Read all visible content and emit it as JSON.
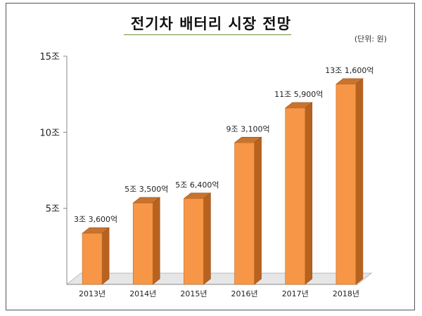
{
  "chart_data": {
    "type": "bar",
    "title": "전기차 배터리 시장 전망",
    "unit_label": "(단위: 원)",
    "categories": [
      "2013년",
      "2014년",
      "2015년",
      "2016년",
      "2017년",
      "2018년"
    ],
    "values": [
      3.36,
      5.35,
      5.64,
      9.31,
      11.59,
      13.16
    ],
    "data_labels": [
      "3조 3,600억",
      "5조 3,500억",
      "5조 6,400억",
      "9조 3,100억",
      "11조 5,900억",
      "13조 1,600억"
    ],
    "y_ticks": [
      {
        "value": 5,
        "label": "5조"
      },
      {
        "value": 10,
        "label": "10조"
      },
      {
        "value": 15,
        "label": "15조"
      }
    ],
    "ylim": [
      0,
      15
    ],
    "grid": false,
    "colors": {
      "bar_front": "#f79646",
      "bar_side": "#b8621f",
      "bar_top": "#c8742e",
      "floor": "#e6e6e6"
    }
  }
}
